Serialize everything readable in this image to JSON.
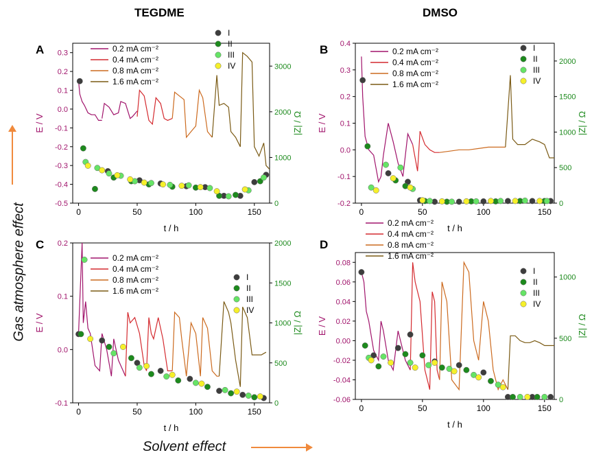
{
  "figure": {
    "col_left_title": "TEGDME",
    "col_right_title": "DMSO",
    "x_axis_effect": "Solvent effect",
    "y_axis_effect": "Gas atmosphere effect",
    "arrow_color": "#f08a3c"
  },
  "colors": {
    "rate_0_2": "#a0136b",
    "rate_0_4": "#d4292e",
    "rate_0_8": "#cc6a1e",
    "rate_1_6": "#7a5a14",
    "imp_I": "#3d3d3d",
    "imp_II": "#1d8a1d",
    "imp_III": "#66e466",
    "imp_IV": "#f6f02a",
    "left_axis": "#a0136b",
    "right_axis": "#1d8a1d"
  },
  "chart_data": [
    {
      "panel": "A",
      "type": "line",
      "xlabel": "t / h",
      "ylabel": "E / V",
      "y2label": "|Z| / Ω",
      "xlim": [
        -5,
        163
      ],
      "ylim": [
        -0.5,
        0.35
      ],
      "y2lim": [
        0,
        3500
      ],
      "xticks": [
        0,
        50,
        100,
        150
      ],
      "yticks": [
        -0.5,
        -0.4,
        -0.3,
        -0.2,
        -0.1,
        0.0,
        0.1,
        0.2,
        0.3
      ],
      "y2ticks": [
        0,
        1000,
        2000,
        3000
      ],
      "legend_lines": [
        "0.2 mA cm⁻²",
        "0.4 mA cm⁻²",
        "0.8 mA cm⁻²",
        "1.6 mA cm⁻²"
      ],
      "legend_points": [
        "I",
        "II",
        "III",
        "IV"
      ],
      "series": [
        {
          "rate": 0,
          "x": [
            0,
            1,
            3,
            5,
            8,
            11,
            14,
            17,
            20
          ],
          "y": [
            0.15,
            0.08,
            0.04,
            0.02,
            -0.02,
            -0.03,
            -0.03,
            -0.06,
            -0.06
          ]
        },
        {
          "rate": 0,
          "x": [
            20,
            22,
            26,
            30,
            34,
            36,
            40,
            44,
            46,
            50
          ],
          "y": [
            -0.05,
            0.03,
            0.01,
            -0.03,
            -0.02,
            0.04,
            0.03,
            -0.05,
            -0.04,
            -0.01
          ]
        },
        {
          "rate": 1,
          "x": [
            50,
            52,
            56,
            60,
            63,
            66,
            70,
            73,
            76,
            80
          ],
          "y": [
            -0.04,
            0.1,
            0.07,
            -0.06,
            -0.08,
            0.06,
            0.03,
            -0.05,
            -0.06,
            -0.05
          ]
        },
        {
          "rate": 2,
          "x": [
            80,
            82,
            86,
            90,
            92,
            96,
            100,
            103,
            106,
            110,
            114
          ],
          "y": [
            -0.05,
            0.09,
            0.07,
            0.05,
            -0.15,
            -0.12,
            -0.09,
            0.1,
            0.06,
            -0.12,
            -0.15
          ]
        },
        {
          "rate": 3,
          "x": [
            114,
            118,
            120,
            124,
            128,
            130,
            134,
            138,
            140,
            144,
            148,
            150,
            154,
            158,
            160,
            163
          ],
          "y": [
            -0.15,
            0.18,
            0.02,
            0.03,
            0.01,
            -0.12,
            -0.15,
            -0.2,
            0.3,
            0.28,
            0.25,
            -0.2,
            -0.25,
            -0.18,
            -0.3,
            -0.32
          ]
        }
      ],
      "impedance": [
        {
          "label": "I",
          "x": [
            1,
            25,
            52,
            70,
            92,
            108,
            124,
            138,
            150,
            160
          ],
          "y": [
            2670,
            700,
            500,
            430,
            370,
            350,
            160,
            160,
            460,
            620
          ]
        },
        {
          "label": "II",
          "x": [
            4,
            14,
            30,
            45,
            60,
            80,
            100,
            120,
            134,
            155
          ],
          "y": [
            1200,
            310,
            560,
            480,
            410,
            360,
            340,
            160,
            180,
            480
          ]
        },
        {
          "label": "III",
          "x": [
            6,
            16,
            26,
            36,
            48,
            62,
            78,
            94,
            112,
            128,
            145,
            158
          ],
          "y": [
            900,
            770,
            650,
            600,
            480,
            440,
            400,
            390,
            330,
            150,
            280,
            560
          ]
        },
        {
          "label": "IV",
          "x": [
            8,
            20,
            33,
            44,
            56,
            72,
            88,
            104,
            118,
            142
          ],
          "y": [
            820,
            720,
            610,
            520,
            450,
            410,
            380,
            350,
            260,
            300
          ]
        }
      ]
    },
    {
      "panel": "B",
      "type": "line",
      "xlabel": "t / h",
      "ylabel": "E / V",
      "y2label": "|Z| / Ω",
      "xlim": [
        -5,
        158
      ],
      "ylim": [
        -0.2,
        0.4
      ],
      "y2lim": [
        0,
        2250
      ],
      "xticks": [
        0,
        50,
        100,
        150
      ],
      "yticks": [
        -0.2,
        -0.1,
        0.0,
        0.1,
        0.2,
        0.3,
        0.4
      ],
      "y2ticks": [
        0,
        500,
        1000,
        1500,
        2000
      ],
      "legend_lines": [
        "0.2 mA cm⁻²",
        "0.4 mA cm⁻²",
        "0.8 mA cm⁻²",
        "1.6 mA cm⁻²"
      ],
      "legend_points": [
        "I",
        "II",
        "III",
        "IV"
      ],
      "series": [
        {
          "rate": 0,
          "x": [
            0,
            1,
            3,
            6,
            10,
            14,
            16,
            18,
            22,
            26,
            30,
            34,
            38,
            42
          ],
          "y": [
            0.35,
            0.2,
            0.05,
            0.0,
            -0.02,
            -0.12,
            -0.1,
            -0.02,
            0.1,
            0.03,
            -0.05,
            -0.1,
            0.06,
            0.02
          ]
        },
        {
          "rate": 1,
          "x": [
            42,
            46,
            48,
            52,
            56,
            60,
            64
          ],
          "y": [
            0.02,
            -0.08,
            0.07,
            0.02,
            0.0,
            -0.01,
            -0.01
          ]
        },
        {
          "rate": 2,
          "x": [
            64,
            72,
            80,
            88,
            96,
            104,
            112,
            118
          ],
          "y": [
            -0.01,
            -0.005,
            0.0,
            0.0,
            0.005,
            0.01,
            0.01,
            0.01
          ]
        },
        {
          "rate": 3,
          "x": [
            118,
            122,
            124,
            128,
            134,
            140,
            146,
            150,
            154,
            158
          ],
          "y": [
            0.01,
            0.28,
            0.04,
            0.02,
            0.02,
            0.04,
            0.03,
            0.02,
            -0.03,
            -0.03
          ]
        }
      ],
      "impedance": [
        {
          "label": "I",
          "x": [
            1,
            22,
            38,
            48,
            60,
            80,
            100,
            120,
            140,
            155
          ],
          "y": [
            1730,
            420,
            300,
            40,
            20,
            20,
            25,
            30,
            30,
            30
          ]
        },
        {
          "label": "II",
          "x": [
            5,
            28,
            36,
            52,
            70,
            90,
            110,
            130,
            150
          ],
          "y": [
            800,
            320,
            240,
            30,
            20,
            25,
            25,
            30,
            30
          ]
        },
        {
          "label": "III",
          "x": [
            8,
            20,
            32,
            42,
            56,
            74,
            94,
            114,
            134,
            152
          ],
          "y": [
            220,
            540,
            500,
            200,
            30,
            20,
            25,
            30,
            35,
            30
          ]
        },
        {
          "label": "IV",
          "x": [
            12,
            26,
            40,
            50,
            66,
            86,
            106,
            126,
            146
          ],
          "y": [
            180,
            350,
            220,
            40,
            25,
            25,
            30,
            30,
            30
          ]
        }
      ]
    },
    {
      "panel": "C",
      "type": "line",
      "xlabel": "t / h",
      "ylabel": "E / V",
      "y2label": "|Z| / Ω",
      "xlim": [
        -5,
        163
      ],
      "ylim": [
        -0.1,
        0.2
      ],
      "y2lim": [
        0,
        2000
      ],
      "xticks": [
        0,
        50,
        100,
        150
      ],
      "yticks": [
        -0.1,
        0.0,
        0.1,
        0.2
      ],
      "y2ticks": [
        0,
        500,
        1000,
        1500,
        2000
      ],
      "legend_lines": [
        "0.2 mA cm⁻²",
        "0.4 mA cm⁻²",
        "0.8 mA cm⁻²",
        "1.6 mA cm⁻²"
      ],
      "legend_points": [
        "I",
        "II",
        "III",
        "IV"
      ],
      "series": [
        {
          "rate": 0,
          "x": [
            0,
            3,
            4,
            6,
            8,
            10,
            14,
            18,
            20,
            24,
            28,
            30,
            34,
            38,
            40
          ],
          "y": [
            0.03,
            0.2,
            0.05,
            0.09,
            0.04,
            0.03,
            -0.03,
            -0.04,
            0.03,
            0.0,
            -0.05,
            0.02,
            -0.02,
            -0.04,
            -0.05
          ]
        },
        {
          "rate": 1,
          "x": [
            40,
            42,
            44,
            48,
            52,
            56,
            58,
            60,
            62,
            64,
            68,
            72,
            76,
            80
          ],
          "y": [
            -0.05,
            0.07,
            0.05,
            0.06,
            0.03,
            -0.03,
            -0.04,
            0.06,
            0.03,
            0.02,
            0.06,
            0.02,
            -0.04,
            -0.04
          ]
        },
        {
          "rate": 2,
          "x": [
            80,
            82,
            86,
            88,
            92,
            96,
            100,
            104,
            106,
            110,
            114,
            118,
            120
          ],
          "y": [
            -0.04,
            0.07,
            0.06,
            0.02,
            -0.05,
            0.05,
            0.03,
            -0.05,
            0.06,
            0.04,
            -0.04,
            -0.05,
            -0.05
          ]
        },
        {
          "rate": 3,
          "x": [
            120,
            124,
            128,
            130,
            134,
            138,
            140,
            144,
            148,
            152,
            156,
            160
          ],
          "y": [
            -0.05,
            0.09,
            0.07,
            0.05,
            -0.02,
            -0.07,
            0.08,
            0.06,
            -0.01,
            -0.01,
            -0.01,
            -0.005
          ]
        }
      ],
      "impedance": [
        {
          "label": "I",
          "x": [
            0,
            20,
            50,
            70,
            95,
            120,
            140,
            158
          ],
          "y": [
            860,
            780,
            500,
            400,
            300,
            150,
            100,
            60
          ]
        },
        {
          "label": "II",
          "x": [
            2,
            26,
            45,
            62,
            85,
            110,
            130,
            150
          ],
          "y": [
            860,
            700,
            560,
            360,
            280,
            200,
            120,
            70
          ]
        },
        {
          "label": "III",
          "x": [
            5,
            30,
            52,
            75,
            100,
            125,
            145
          ],
          "y": [
            1790,
            620,
            440,
            330,
            250,
            160,
            90
          ]
        },
        {
          "label": "IV",
          "x": [
            10,
            38,
            58,
            80,
            105,
            135,
            155
          ],
          "y": [
            800,
            700,
            460,
            350,
            240,
            140,
            80
          ]
        }
      ]
    },
    {
      "panel": "D",
      "type": "line",
      "xlabel": "t / h",
      "ylabel": "E / V",
      "y2label": "|Z| / Ω",
      "xlim": [
        -5,
        158
      ],
      "ylim": [
        -0.06,
        0.09
      ],
      "y2lim": [
        0,
        1200
      ],
      "xticks": [
        0,
        50,
        100,
        150
      ],
      "yticks": [
        -0.06,
        -0.04,
        -0.02,
        0.0,
        0.02,
        0.04,
        0.06,
        0.08
      ],
      "y2ticks": [
        0,
        500,
        1000
      ],
      "legend_lines": [
        "0.2 mA cm⁻²",
        "0.4 mA cm⁻²",
        "0.8 mA cm⁻²",
        "1.6 mA cm⁻²"
      ],
      "legend_points": [
        "I",
        "II",
        "III",
        "IV"
      ],
      "series": [
        {
          "rate": 0,
          "x": [
            0,
            2,
            4,
            6,
            10,
            14,
            16,
            18,
            22,
            26,
            30,
            32,
            36,
            40
          ],
          "y": [
            0.07,
            0.06,
            0.03,
            0.02,
            -0.01,
            -0.02,
            0.02,
            0.01,
            -0.02,
            -0.03,
            0.01,
            0.0,
            -0.02,
            -0.03
          ]
        },
        {
          "rate": 1,
          "x": [
            40,
            42,
            44,
            48,
            52,
            56,
            58,
            60,
            62,
            64
          ],
          "y": [
            -0.03,
            0.08,
            0.06,
            0.04,
            -0.03,
            -0.05,
            0.05,
            0.04,
            -0.03,
            -0.04
          ]
        },
        {
          "rate": 2,
          "x": [
            64,
            66,
            70,
            74,
            80,
            84,
            88,
            92,
            96,
            100,
            104,
            108,
            112,
            116,
            120
          ],
          "y": [
            -0.04,
            0.06,
            0.04,
            -0.04,
            -0.05,
            0.08,
            0.07,
            0.0,
            -0.02,
            0.04,
            0.02,
            -0.03,
            -0.05,
            -0.04,
            -0.05
          ]
        },
        {
          "rate": 3,
          "x": [
            120,
            122,
            126,
            130,
            134,
            138,
            142,
            146,
            150,
            154,
            158
          ],
          "y": [
            -0.05,
            0.005,
            0.005,
            0.0,
            -0.002,
            -0.002,
            0.0,
            -0.002,
            -0.005,
            -0.005,
            -0.005
          ]
        }
      ],
      "impedance": [
        {
          "label": "I",
          "x": [
            0,
            10,
            30,
            40,
            60,
            80,
            100,
            120,
            140,
            155
          ],
          "y": [
            1040,
            360,
            420,
            530,
            310,
            280,
            220,
            20,
            20,
            20
          ]
        },
        {
          "label": "II",
          "x": [
            3,
            14,
            36,
            50,
            66,
            86,
            106,
            124,
            144
          ],
          "y": [
            440,
            270,
            370,
            360,
            260,
            240,
            150,
            20,
            20
          ]
        },
        {
          "label": "III",
          "x": [
            6,
            18,
            40,
            55,
            72,
            92,
            112,
            130,
            150
          ],
          "y": [
            340,
            350,
            300,
            280,
            250,
            200,
            120,
            20,
            20
          ]
        },
        {
          "label": "IV",
          "x": [
            8,
            24,
            44,
            60,
            76,
            96,
            116,
            136
          ],
          "y": [
            320,
            300,
            260,
            300,
            230,
            180,
            100,
            20
          ]
        }
      ]
    }
  ]
}
